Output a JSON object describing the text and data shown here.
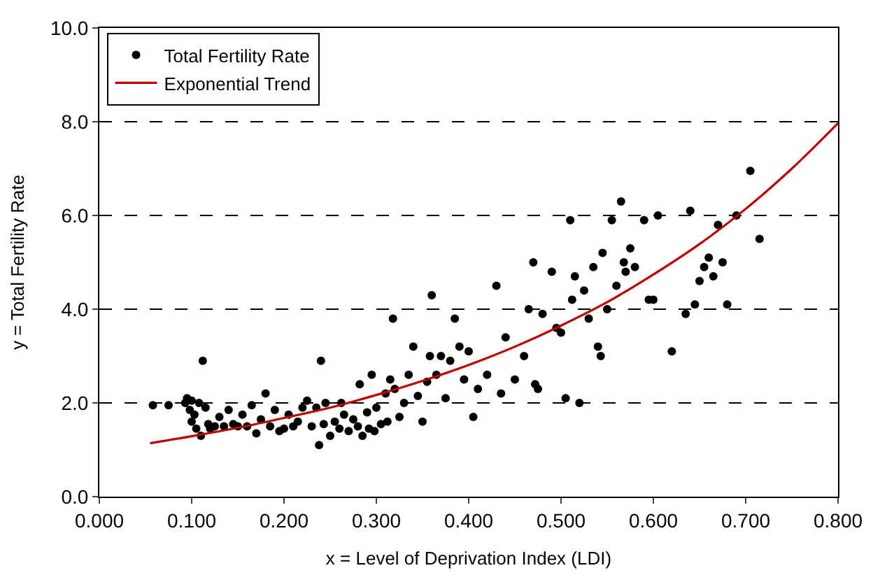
{
  "chart_data": {
    "type": "scatter",
    "xlabel": "x = Level of Deprivation Index (LDI)",
    "ylabel": "y = Total Fertility Rate",
    "xlim": [
      0.0,
      0.8
    ],
    "xticks": [
      {
        "value": 0,
        "label": "0.000"
      },
      {
        "value": 0.1,
        "label": "0.100"
      },
      {
        "value": 0.2,
        "label": "0.200"
      },
      {
        "value": 0.3,
        "label": "0.300"
      },
      {
        "value": 0.4,
        "label": "0.400"
      },
      {
        "value": 0.5,
        "label": "0.500"
      },
      {
        "value": 0.6,
        "label": "0.600"
      },
      {
        "value": 0.7,
        "label": "0.700"
      },
      {
        "value": 0.8,
        "label": "0.800"
      }
    ],
    "ylim": [
      0.0,
      10.0
    ],
    "yticks": [
      {
        "value": 0,
        "label": "0.0"
      },
      {
        "value": 2,
        "label": "2.0"
      },
      {
        "value": 4,
        "label": "4.0"
      },
      {
        "value": 6,
        "label": "6.0"
      },
      {
        "value": 8,
        "label": "8.0"
      },
      {
        "value": 10,
        "label": "10.0"
      }
    ],
    "ref_lines": [
      {
        "axis": "y",
        "value": 2,
        "color": "#000000",
        "line_style": "dashed"
      },
      {
        "axis": "y",
        "value": 4,
        "color": "#000000",
        "line_style": "dashed"
      },
      {
        "axis": "y",
        "value": 6,
        "color": "#000000",
        "line_style": "dashed"
      },
      {
        "axis": "y",
        "value": 8,
        "color": "#000000",
        "line_style": "dashed"
      }
    ],
    "legend": "top left",
    "marker": "circle",
    "series": [
      {
        "name": "Total Fertility Rate",
        "color": "#000000",
        "x": [
          0.058,
          0.075,
          0.093,
          0.095,
          0.098,
          0.1,
          0.1,
          0.103,
          0.105,
          0.108,
          0.11,
          0.112,
          0.115,
          0.118,
          0.12,
          0.125,
          0.13,
          0.135,
          0.14,
          0.145,
          0.15,
          0.155,
          0.16,
          0.165,
          0.17,
          0.175,
          0.18,
          0.185,
          0.19,
          0.195,
          0.2,
          0.205,
          0.21,
          0.215,
          0.22,
          0.225,
          0.23,
          0.235,
          0.238,
          0.24,
          0.243,
          0.245,
          0.25,
          0.255,
          0.26,
          0.262,
          0.265,
          0.27,
          0.275,
          0.28,
          0.282,
          0.285,
          0.29,
          0.292,
          0.295,
          0.298,
          0.3,
          0.305,
          0.31,
          0.312,
          0.315,
          0.318,
          0.32,
          0.325,
          0.33,
          0.335,
          0.34,
          0.345,
          0.35,
          0.355,
          0.358,
          0.36,
          0.365,
          0.37,
          0.375,
          0.38,
          0.385,
          0.39,
          0.395,
          0.4,
          0.405,
          0.41,
          0.42,
          0.43,
          0.435,
          0.44,
          0.45,
          0.46,
          0.465,
          0.47,
          0.472,
          0.475,
          0.48,
          0.49,
          0.495,
          0.5,
          0.505,
          0.51,
          0.512,
          0.515,
          0.52,
          0.525,
          0.53,
          0.535,
          0.54,
          0.543,
          0.545,
          0.55,
          0.555,
          0.56,
          0.565,
          0.568,
          0.57,
          0.575,
          0.58,
          0.59,
          0.595,
          0.6,
          0.605,
          0.62,
          0.635,
          0.64,
          0.645,
          0.65,
          0.655,
          0.66,
          0.665,
          0.67,
          0.675,
          0.68,
          0.69,
          0.705,
          0.715
        ],
        "values": [
          1.95,
          1.95,
          2.0,
          2.1,
          1.85,
          1.6,
          2.05,
          1.75,
          1.45,
          2.0,
          1.3,
          2.9,
          1.9,
          1.55,
          1.45,
          1.5,
          1.7,
          1.5,
          1.85,
          1.55,
          1.5,
          1.75,
          1.5,
          1.95,
          1.35,
          1.65,
          2.2,
          1.5,
          1.85,
          1.4,
          1.45,
          1.75,
          1.5,
          1.6,
          1.9,
          2.05,
          1.5,
          1.9,
          1.1,
          2.9,
          1.55,
          2.0,
          1.3,
          1.6,
          1.45,
          2.0,
          1.75,
          1.4,
          1.65,
          1.5,
          2.4,
          1.3,
          1.8,
          1.45,
          2.6,
          1.4,
          1.9,
          1.55,
          2.2,
          1.6,
          2.5,
          3.8,
          2.3,
          1.7,
          2.0,
          2.6,
          3.2,
          2.15,
          1.6,
          2.45,
          3.0,
          4.3,
          2.6,
          3.0,
          2.1,
          2.9,
          3.8,
          3.2,
          2.5,
          3.1,
          1.7,
          2.3,
          2.6,
          4.5,
          2.2,
          3.4,
          2.5,
          3.0,
          4.0,
          5.0,
          2.4,
          2.3,
          3.9,
          4.8,
          3.6,
          3.5,
          2.1,
          5.9,
          4.2,
          4.7,
          2.0,
          4.4,
          3.8,
          4.9,
          3.2,
          3.0,
          5.2,
          4.0,
          5.9,
          4.5,
          6.3,
          5.0,
          4.8,
          5.3,
          4.9,
          5.9,
          4.2,
          4.2,
          6.0,
          3.1,
          3.9,
          6.1,
          4.1,
          4.6,
          4.9,
          5.1,
          4.7,
          5.8,
          5.0,
          4.1,
          6.0,
          6.95,
          5.5
        ]
      },
      {
        "name": "Exponential Trend",
        "type": "line",
        "marker": "none",
        "line_style": "solid",
        "color": "#c00000",
        "x": [
          0.055,
          0.1,
          0.15,
          0.2,
          0.25,
          0.3,
          0.35,
          0.4,
          0.45,
          0.5,
          0.55,
          0.6,
          0.65,
          0.7,
          0.75,
          0.8
        ],
        "values": [
          1.14,
          1.29,
          1.47,
          1.68,
          1.9,
          2.17,
          2.47,
          2.81,
          3.2,
          3.65,
          4.15,
          4.74,
          5.39,
          6.14,
          7.0,
          7.97
        ]
      }
    ]
  }
}
